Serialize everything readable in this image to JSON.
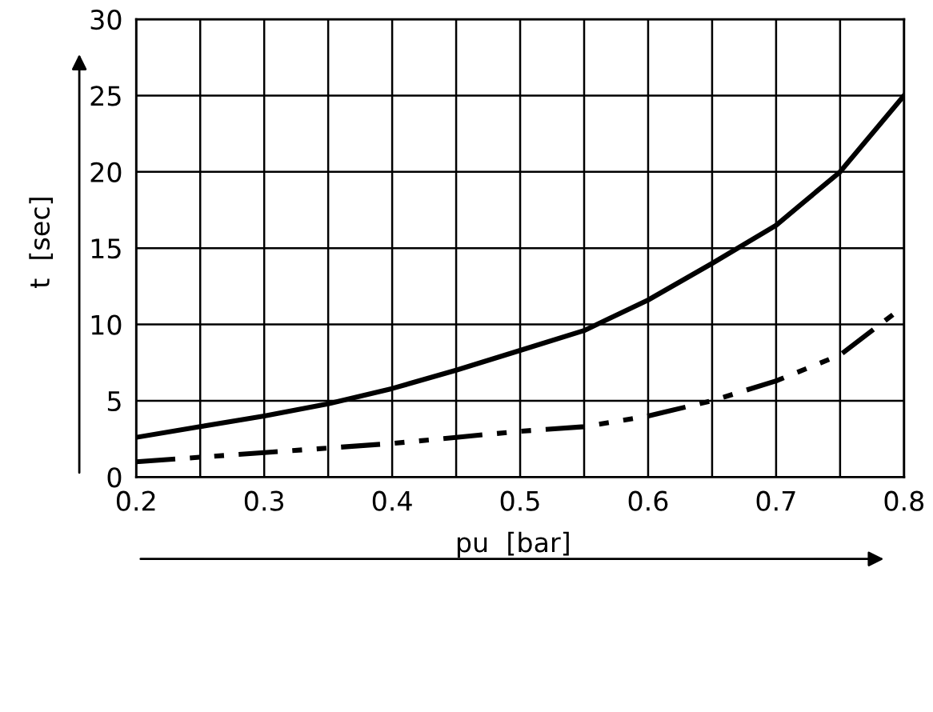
{
  "chart_data": {
    "type": "line",
    "xlabel": "pu  [bar]",
    "ylabel": "t  [sec]",
    "x": [
      0.2,
      0.25,
      0.3,
      0.35,
      0.4,
      0.45,
      0.5,
      0.55,
      0.6,
      0.65,
      0.7,
      0.75,
      0.8
    ],
    "series": [
      {
        "color": "#000000",
        "line_style": "solid",
        "values": [
          2.6,
          3.3,
          4.0,
          4.8,
          5.8,
          7.0,
          8.3,
          9.6,
          11.6,
          14.0,
          16.5,
          20.0,
          25.0
        ]
      },
      {
        "color": "#000000",
        "line_style": "dashdotdot",
        "values": [
          1.0,
          1.3,
          1.6,
          1.9,
          2.2,
          2.6,
          3.0,
          3.3,
          4.0,
          5.0,
          6.3,
          8.0,
          11.2
        ]
      }
    ],
    "xlim": [
      0.2,
      0.8
    ],
    "ylim": [
      0,
      30
    ],
    "xticks": [
      0.2,
      {
        "value": 0.25,
        "label": null
      },
      0.3,
      {
        "value": 0.35,
        "label": null
      },
      0.4,
      {
        "value": 0.45,
        "label": null
      },
      0.5,
      {
        "value": 0.55,
        "label": null
      },
      0.6,
      {
        "value": 0.65,
        "label": null
      },
      0.7,
      {
        "value": 0.75,
        "label": null
      },
      0.8
    ],
    "yticks": [
      0,
      5,
      10,
      15,
      20,
      25,
      30
    ],
    "grid": true,
    "marker": "none"
  }
}
